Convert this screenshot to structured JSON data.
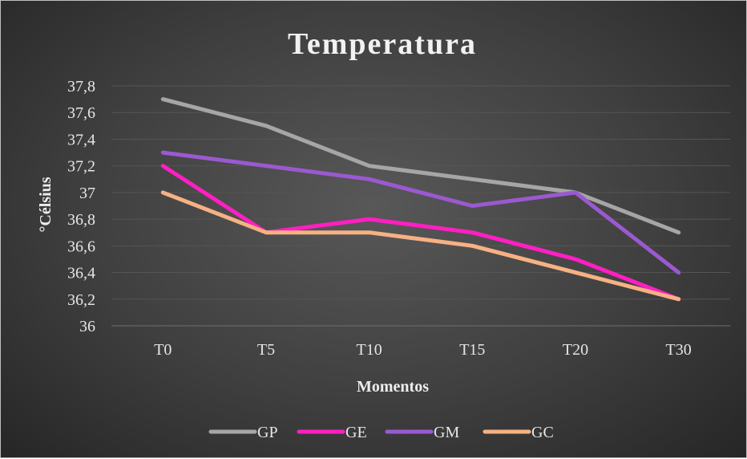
{
  "chart_data": {
    "type": "line",
    "title": "Temperatura",
    "xlabel": "Momentos",
    "ylabel": "°Célsius",
    "categories": [
      "T0",
      "T5",
      "T10",
      "T15",
      "T20",
      "T30"
    ],
    "ylim": [
      36,
      37.8
    ],
    "yticks": [
      "36",
      "36,2",
      "36,4",
      "36,6",
      "36,8",
      "37",
      "37,2",
      "37,4",
      "37,6",
      "37,8"
    ],
    "grid": true,
    "legend_position": "bottom",
    "series": [
      {
        "name": "GP",
        "color": "#a6a6a6",
        "values": [
          37.7,
          37.5,
          37.2,
          37.1,
          37.0,
          36.7
        ]
      },
      {
        "name": "GE",
        "color": "#ff1fc2",
        "values": [
          37.2,
          36.7,
          36.8,
          36.7,
          36.5,
          36.2
        ]
      },
      {
        "name": "GM",
        "color": "#9b59d0",
        "values": [
          37.3,
          37.2,
          37.1,
          36.9,
          37.0,
          36.4
        ]
      },
      {
        "name": "GC",
        "color": "#f7b183",
        "values": [
          37.0,
          36.7,
          36.7,
          36.6,
          36.4,
          36.2
        ]
      }
    ]
  }
}
